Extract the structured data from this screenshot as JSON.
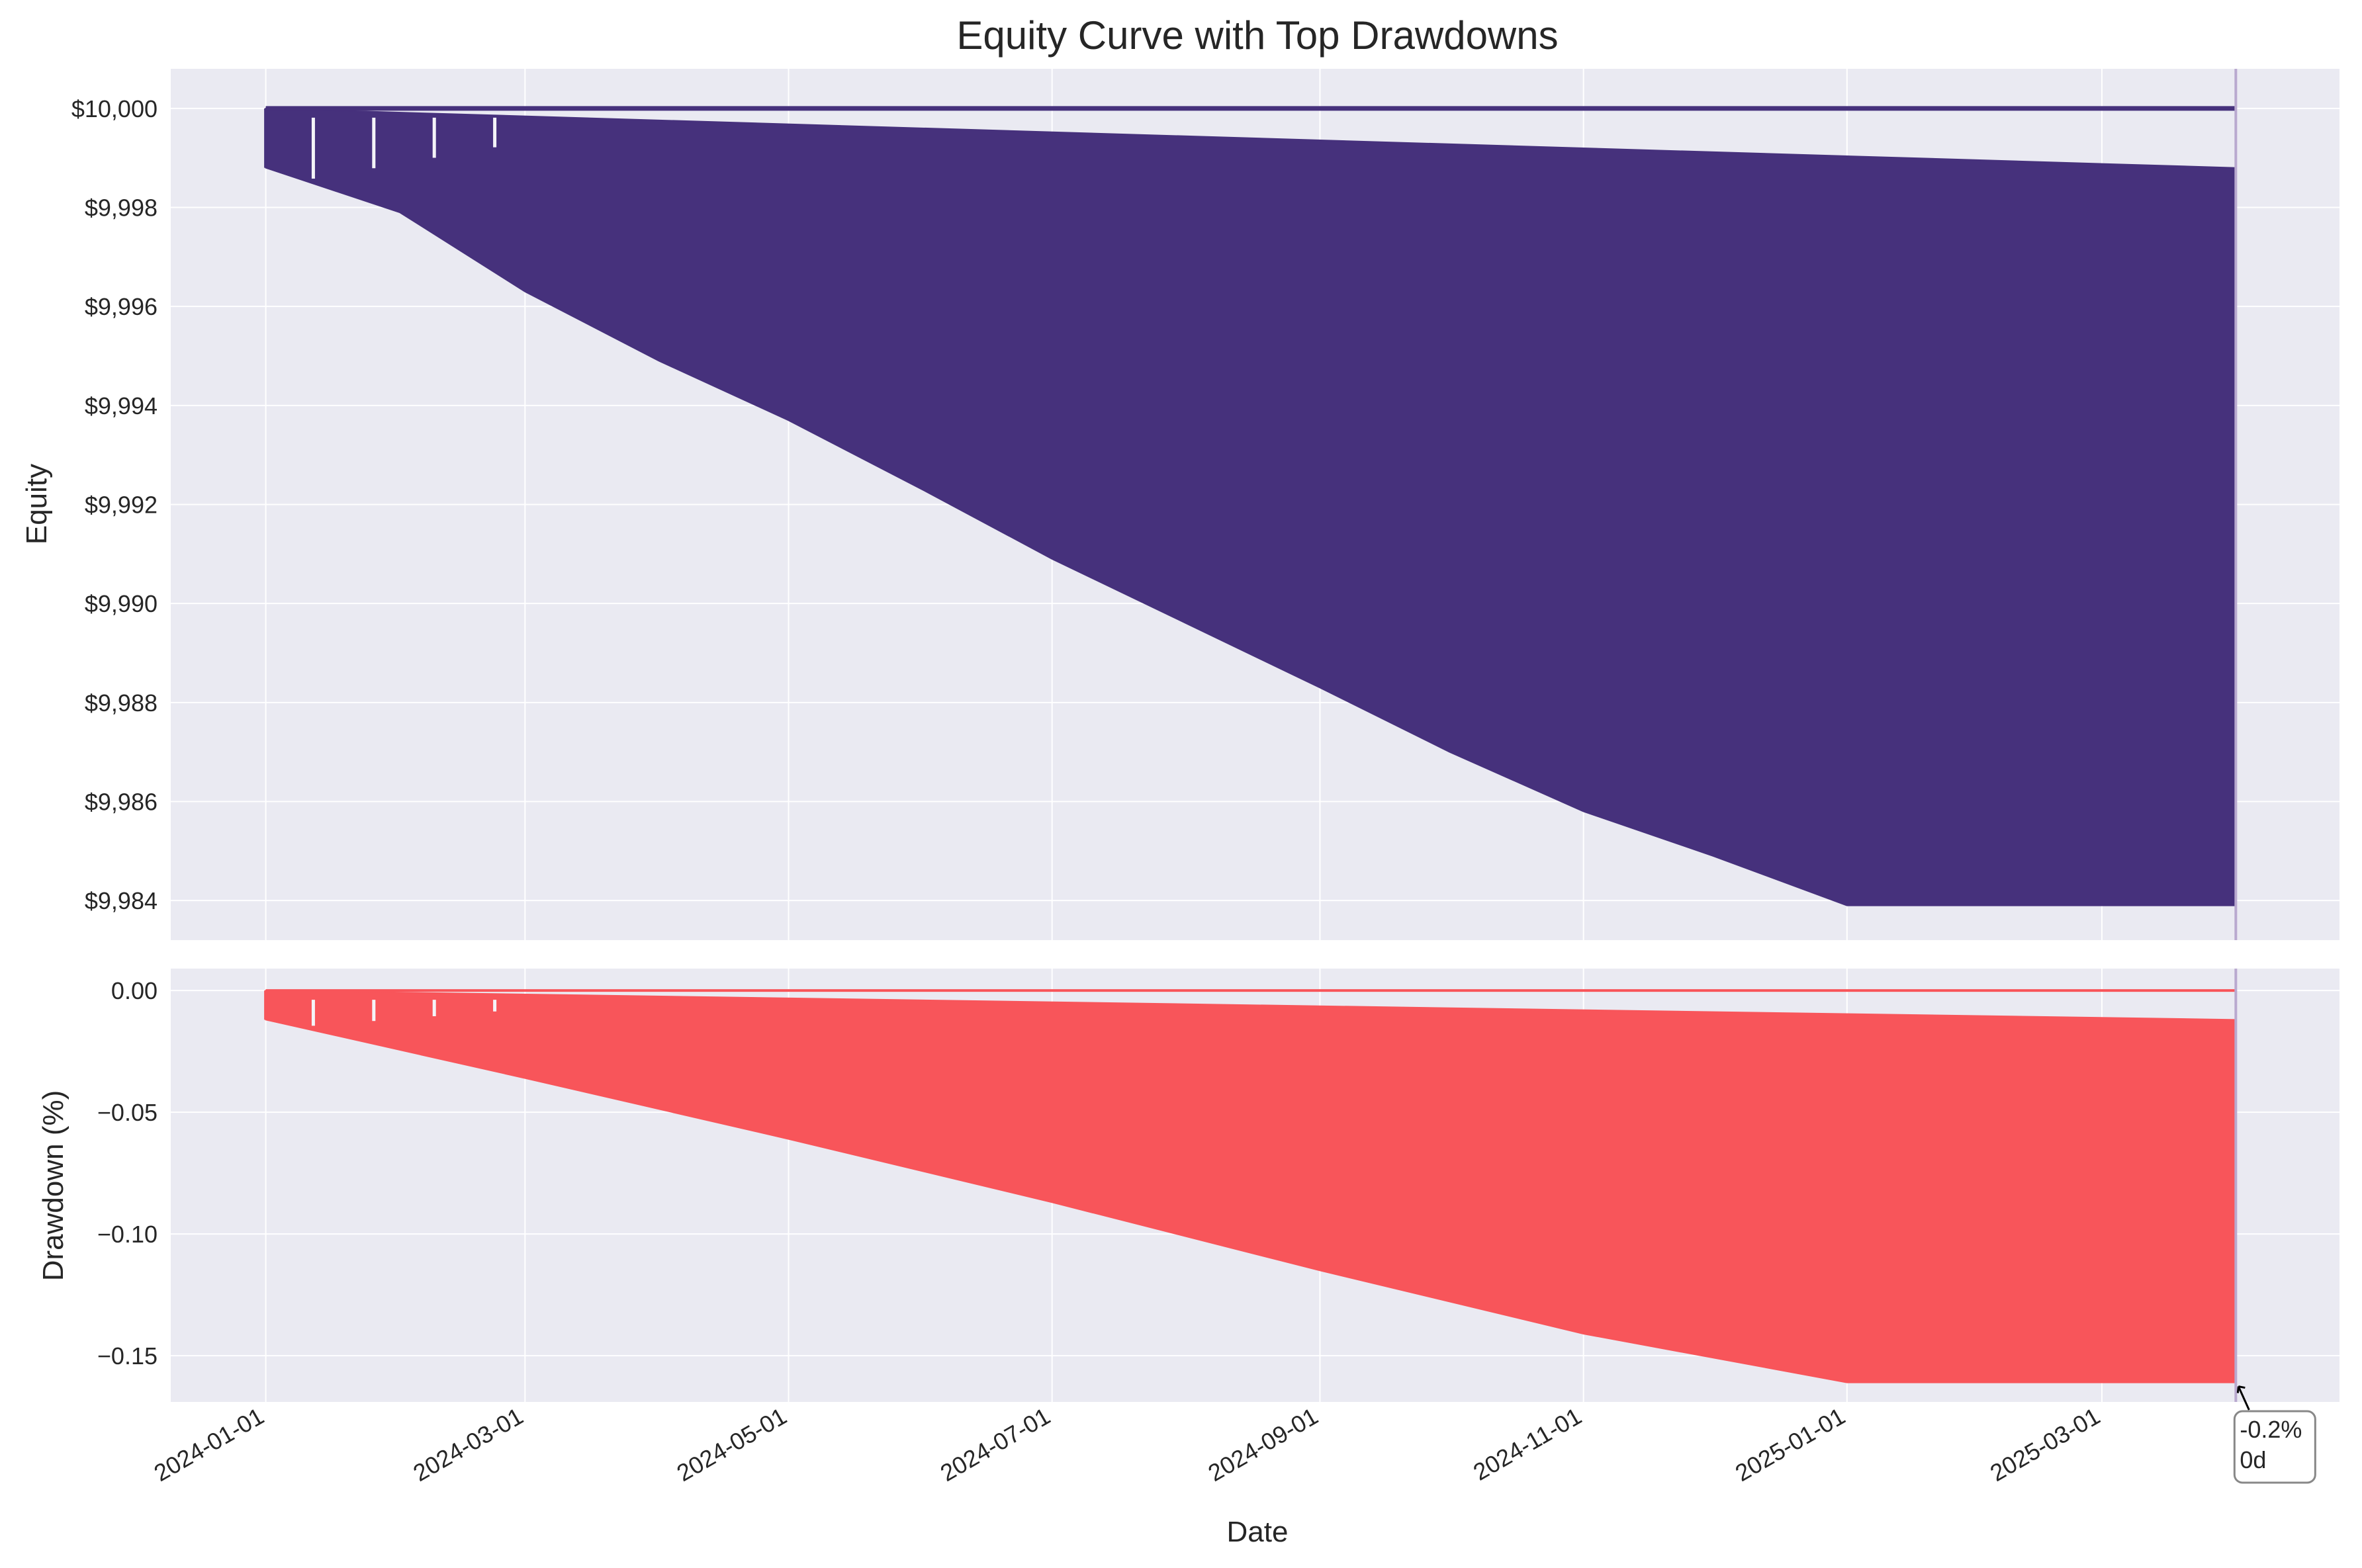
{
  "title": "Equity Curve with Top Drawdowns",
  "colors": {
    "equity": "#46317c",
    "drawdown": "#f8555a",
    "panel_bg": "#eaeaf2",
    "grid": "#ffffff",
    "marker": "#b9a9cf",
    "text": "#262626"
  },
  "chart_data": [
    {
      "type": "area",
      "panel": "top",
      "xlabel": "",
      "ylabel": "Equity",
      "ylim": [
        9983.2,
        10000.8
      ],
      "yticks": [
        {
          "value": 10000,
          "label": "$10,000"
        },
        {
          "value": 9998,
          "label": "$9,998"
        },
        {
          "value": 9996,
          "label": "$9,996"
        },
        {
          "value": 9994,
          "label": "$9,994"
        },
        {
          "value": 9992,
          "label": "$9,992"
        },
        {
          "value": 9990,
          "label": "$9,990"
        },
        {
          "value": 9988,
          "label": "$9,988"
        },
        {
          "value": 9986,
          "label": "$9,986"
        },
        {
          "value": 9984,
          "label": "$9,984"
        }
      ],
      "series": [
        {
          "name": "equity_upper",
          "points": [
            [
              "2024-01-01",
              10000
            ],
            [
              "2025-04-01",
              10000
            ]
          ]
        },
        {
          "name": "equity_band_top",
          "points": [
            [
              "2024-01-01",
              10000
            ],
            [
              "2025-04-01",
              9998.8
            ]
          ]
        },
        {
          "name": "equity_band_bottom",
          "points": [
            [
              "2024-01-01",
              9998.8
            ],
            [
              "2024-02-01",
              9997.9
            ],
            [
              "2024-03-01",
              9996.3
            ],
            [
              "2024-04-01",
              9994.9
            ],
            [
              "2024-05-01",
              9993.7
            ],
            [
              "2024-06-01",
              9992.3
            ],
            [
              "2024-07-01",
              9990.9
            ],
            [
              "2024-08-01",
              9989.6
            ],
            [
              "2024-09-01",
              9988.3
            ],
            [
              "2024-10-01",
              9987.0
            ],
            [
              "2024-11-01",
              9985.8
            ],
            [
              "2024-12-01",
              9984.9
            ],
            [
              "2025-01-01",
              9983.9
            ],
            [
              "2025-04-01",
              9983.9
            ]
          ]
        }
      ]
    },
    {
      "type": "area",
      "panel": "bottom",
      "xlabel": "Date",
      "ylabel": "Drawdown (%)",
      "ylim": [
        -0.169,
        0.009
      ],
      "yticks": [
        {
          "value": 0.0,
          "label": "0.00"
        },
        {
          "value": -0.05,
          "label": "−0.05"
        },
        {
          "value": -0.1,
          "label": "−0.10"
        },
        {
          "value": -0.15,
          "label": "−0.15"
        }
      ],
      "xticks": [
        {
          "value": "2024-01-01",
          "label": "2024-01-01"
        },
        {
          "value": "2024-03-01",
          "label": "2024-03-01"
        },
        {
          "value": "2024-05-01",
          "label": "2024-05-01"
        },
        {
          "value": "2024-07-01",
          "label": "2024-07-01"
        },
        {
          "value": "2024-09-01",
          "label": "2024-09-01"
        },
        {
          "value": "2024-11-01",
          "label": "2024-11-01"
        },
        {
          "value": "2025-01-01",
          "label": "2025-01-01"
        },
        {
          "value": "2025-03-01",
          "label": "2025-03-01"
        }
      ],
      "series": [
        {
          "name": "drawdown_upper",
          "points": [
            [
              "2024-01-01",
              0.0
            ],
            [
              "2025-04-01",
              0.0
            ]
          ]
        },
        {
          "name": "drawdown_band_top",
          "points": [
            [
              "2024-01-01",
              0.0
            ],
            [
              "2025-04-01",
              -0.012
            ]
          ]
        },
        {
          "name": "drawdown_band_bottom",
          "points": [
            [
              "2024-01-01",
              -0.012
            ],
            [
              "2024-03-01",
              -0.036
            ],
            [
              "2024-05-01",
              -0.061
            ],
            [
              "2024-07-01",
              -0.087
            ],
            [
              "2024-09-01",
              -0.115
            ],
            [
              "2024-11-01",
              -0.141
            ],
            [
              "2025-01-01",
              -0.161
            ],
            [
              "2025-04-01",
              -0.161
            ]
          ]
        }
      ],
      "annotation": {
        "at": [
          "2025-04-01",
          -0.161
        ],
        "text_line1": "-0.2%",
        "text_line2": "0d"
      }
    }
  ],
  "x_range": [
    "2023-12-10",
    "2025-04-25"
  ],
  "marker_date": "2025-04-01"
}
